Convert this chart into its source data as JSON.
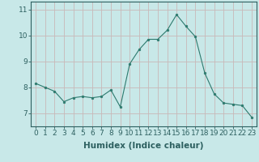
{
  "x": [
    0,
    1,
    2,
    3,
    4,
    5,
    6,
    7,
    8,
    9,
    10,
    11,
    12,
    13,
    14,
    15,
    16,
    17,
    18,
    19,
    20,
    21,
    22,
    23
  ],
  "y": [
    8.15,
    8.0,
    7.85,
    7.45,
    7.6,
    7.65,
    7.6,
    7.65,
    7.9,
    7.25,
    8.9,
    9.45,
    9.85,
    9.85,
    10.2,
    10.8,
    10.35,
    9.95,
    8.55,
    7.75,
    7.4,
    7.35,
    7.3,
    6.85
  ],
  "line_color": "#2d7a6e",
  "marker_color": "#2d7a6e",
  "bg_color": "#c8e8e8",
  "grid_color": "#c8b8b8",
  "axis_color": "#2d6060",
  "xlabel": "Humidex (Indice chaleur)",
  "xlim": [
    -0.5,
    23.5
  ],
  "ylim": [
    6.5,
    11.3
  ],
  "yticks": [
    7,
    8,
    9,
    10,
    11
  ],
  "xticks": [
    0,
    1,
    2,
    3,
    4,
    5,
    6,
    7,
    8,
    9,
    10,
    11,
    12,
    13,
    14,
    15,
    16,
    17,
    18,
    19,
    20,
    21,
    22,
    23
  ],
  "xtick_labels": [
    "0",
    "1",
    "2",
    "3",
    "4",
    "5",
    "6",
    "7",
    "8",
    "9",
    "10",
    "11",
    "12",
    "13",
    "14",
    "15",
    "16",
    "17",
    "18",
    "19",
    "20",
    "21",
    "22",
    "23"
  ],
  "font_size": 6.5,
  "xlabel_fontsize": 7.5
}
